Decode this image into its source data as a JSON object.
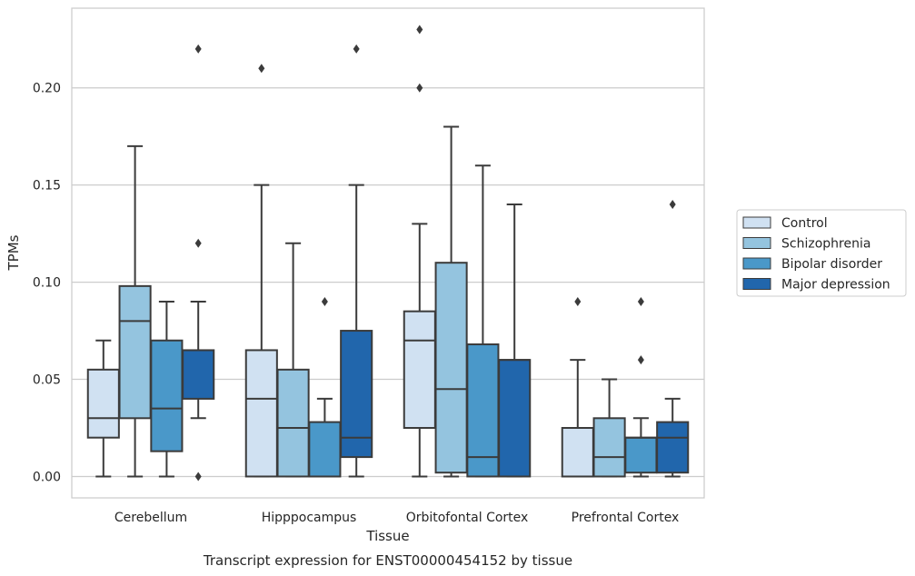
{
  "caption": "Transcript expression for ENST00000454152 by tissue",
  "chart_data": {
    "type": "boxplot",
    "xlabel": "Tissue",
    "ylabel": "TPMs",
    "categories": [
      "Cerebellum",
      "Hipppocampus",
      "Orbitofontal Cortex",
      "Prefrontal Cortex"
    ],
    "ylim": [
      -0.011,
      0.241
    ],
    "yticks": [
      0.0,
      0.05,
      0.1,
      0.15,
      0.2
    ],
    "ytick_labels": [
      "0.00",
      "0.05",
      "0.10",
      "0.15",
      "0.20"
    ],
    "grid": "horizontal",
    "legend_position": "right",
    "series": [
      {
        "name": "Control",
        "color": "#d0e1f2",
        "boxes": [
          {
            "whislo": 0.0,
            "q1": 0.02,
            "med": 0.03,
            "q3": 0.055,
            "whishi": 0.07,
            "fliers": []
          },
          {
            "whislo": 0.0,
            "q1": 0.0,
            "med": 0.04,
            "q3": 0.065,
            "whishi": 0.15,
            "fliers": [
              0.21
            ]
          },
          {
            "whislo": 0.0,
            "q1": 0.025,
            "med": 0.07,
            "q3": 0.085,
            "whishi": 0.13,
            "fliers": [
              0.2,
              0.23
            ]
          },
          {
            "whislo": 0.0,
            "q1": 0.0,
            "med": 0.0,
            "q3": 0.025,
            "whishi": 0.06,
            "fliers": [
              0.09
            ]
          }
        ]
      },
      {
        "name": "Schizophrenia",
        "color": "#94c4df",
        "boxes": [
          {
            "whislo": 0.0,
            "q1": 0.03,
            "med": 0.08,
            "q3": 0.098,
            "whishi": 0.17,
            "fliers": []
          },
          {
            "whislo": 0.0,
            "q1": 0.0,
            "med": 0.025,
            "q3": 0.055,
            "whishi": 0.12,
            "fliers": []
          },
          {
            "whislo": 0.0,
            "q1": 0.002,
            "med": 0.045,
            "q3": 0.11,
            "whishi": 0.18,
            "fliers": []
          },
          {
            "whislo": 0.0,
            "q1": 0.0,
            "med": 0.01,
            "q3": 0.03,
            "whishi": 0.05,
            "fliers": []
          }
        ]
      },
      {
        "name": "Bipolar disorder",
        "color": "#4a98c9",
        "boxes": [
          {
            "whislo": 0.0,
            "q1": 0.013,
            "med": 0.035,
            "q3": 0.07,
            "whishi": 0.09,
            "fliers": []
          },
          {
            "whislo": 0.0,
            "q1": 0.0,
            "med": 0.0,
            "q3": 0.028,
            "whishi": 0.04,
            "fliers": [
              0.09
            ]
          },
          {
            "whislo": 0.0,
            "q1": 0.0,
            "med": 0.01,
            "q3": 0.068,
            "whishi": 0.16,
            "fliers": []
          },
          {
            "whislo": 0.0,
            "q1": 0.002,
            "med": 0.02,
            "q3": 0.02,
            "whishi": 0.03,
            "fliers": [
              0.06,
              0.09
            ]
          }
        ]
      },
      {
        "name": "Major depression",
        "color": "#2166ac",
        "boxes": [
          {
            "whislo": 0.03,
            "q1": 0.04,
            "med": 0.065,
            "q3": 0.065,
            "whishi": 0.09,
            "fliers": [
              0.0,
              0.12,
              0.22
            ]
          },
          {
            "whislo": 0.0,
            "q1": 0.01,
            "med": 0.02,
            "q3": 0.075,
            "whishi": 0.15,
            "fliers": [
              0.22
            ]
          },
          {
            "whislo": 0.0,
            "q1": 0.0,
            "med": 0.06,
            "q3": 0.06,
            "whishi": 0.14,
            "fliers": []
          },
          {
            "whislo": 0.0,
            "q1": 0.002,
            "med": 0.02,
            "q3": 0.028,
            "whishi": 0.04,
            "fliers": [
              0.14
            ]
          }
        ]
      }
    ]
  }
}
